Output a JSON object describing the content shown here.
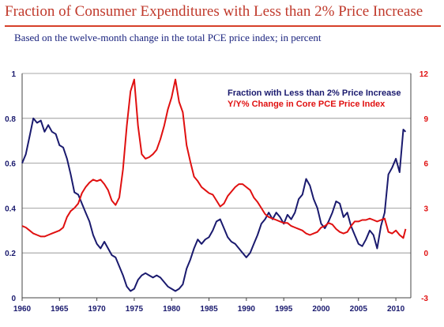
{
  "title": "Fraction of Consumer Expenditures with Less than 2% Price Increase",
  "subtitle": "Based on the twelve-month change in the total PCE price index; in percent",
  "chart_data": {
    "type": "line",
    "title": "Fraction of Consumer Expenditures with Less than 2% Price Increase",
    "subtitle": "Based on the twelve-month change in the total PCE price index; in percent",
    "xlim": [
      1960,
      2012
    ],
    "x_ticks": [
      "1960",
      "1965",
      "1970",
      "1975",
      "1980",
      "1985",
      "1990",
      "1995",
      "2000",
      "2005",
      "2010"
    ],
    "y_left": {
      "lim": [
        0,
        1
      ],
      "ticks": [
        "0",
        "0.2",
        "0.4",
        "0.6",
        "0.8",
        "1"
      ],
      "color": "#1a1a6e"
    },
    "y_right": {
      "lim": [
        -3,
        12
      ],
      "ticks": [
        "-3",
        "0",
        "3",
        "6",
        "9",
        "12"
      ],
      "color": "#e01010"
    },
    "grid": "horizontal",
    "legend_position": "top-right",
    "series": [
      {
        "name": "Fraction with Less than 2% Price Increase",
        "axis": "left",
        "color": "#1a1a6e",
        "points": [
          [
            1960.0,
            0.6
          ],
          [
            1960.5,
            0.64
          ],
          [
            1961.0,
            0.72
          ],
          [
            1961.5,
            0.8
          ],
          [
            1962.0,
            0.78
          ],
          [
            1962.5,
            0.79
          ],
          [
            1963.0,
            0.74
          ],
          [
            1963.5,
            0.77
          ],
          [
            1964.0,
            0.74
          ],
          [
            1964.5,
            0.73
          ],
          [
            1965.0,
            0.68
          ],
          [
            1965.5,
            0.67
          ],
          [
            1966.0,
            0.62
          ],
          [
            1966.5,
            0.55
          ],
          [
            1967.0,
            0.47
          ],
          [
            1967.5,
            0.46
          ],
          [
            1968.0,
            0.42
          ],
          [
            1968.5,
            0.38
          ],
          [
            1969.0,
            0.34
          ],
          [
            1969.5,
            0.28
          ],
          [
            1970.0,
            0.24
          ],
          [
            1970.5,
            0.22
          ],
          [
            1971.0,
            0.25
          ],
          [
            1971.5,
            0.22
          ],
          [
            1972.0,
            0.19
          ],
          [
            1972.5,
            0.18
          ],
          [
            1973.0,
            0.14
          ],
          [
            1973.5,
            0.1
          ],
          [
            1974.0,
            0.05
          ],
          [
            1974.5,
            0.03
          ],
          [
            1975.0,
            0.04
          ],
          [
            1975.5,
            0.08
          ],
          [
            1976.0,
            0.1
          ],
          [
            1976.5,
            0.11
          ],
          [
            1977.0,
            0.1
          ],
          [
            1977.5,
            0.09
          ],
          [
            1978.0,
            0.1
          ],
          [
            1978.5,
            0.09
          ],
          [
            1979.0,
            0.07
          ],
          [
            1979.5,
            0.05
          ],
          [
            1980.0,
            0.04
          ],
          [
            1980.5,
            0.03
          ],
          [
            1981.0,
            0.04
          ],
          [
            1981.5,
            0.06
          ],
          [
            1982.0,
            0.13
          ],
          [
            1982.5,
            0.17
          ],
          [
            1983.0,
            0.22
          ],
          [
            1983.5,
            0.26
          ],
          [
            1984.0,
            0.24
          ],
          [
            1984.5,
            0.26
          ],
          [
            1985.0,
            0.27
          ],
          [
            1985.5,
            0.3
          ],
          [
            1986.0,
            0.34
          ],
          [
            1986.5,
            0.35
          ],
          [
            1987.0,
            0.31
          ],
          [
            1987.5,
            0.27
          ],
          [
            1988.0,
            0.25
          ],
          [
            1988.5,
            0.24
          ],
          [
            1989.0,
            0.22
          ],
          [
            1989.5,
            0.2
          ],
          [
            1990.0,
            0.18
          ],
          [
            1990.5,
            0.2
          ],
          [
            1991.0,
            0.24
          ],
          [
            1991.5,
            0.28
          ],
          [
            1992.0,
            0.33
          ],
          [
            1992.5,
            0.35
          ],
          [
            1993.0,
            0.38
          ],
          [
            1993.5,
            0.35
          ],
          [
            1994.0,
            0.38
          ],
          [
            1994.5,
            0.36
          ],
          [
            1995.0,
            0.33
          ],
          [
            1995.5,
            0.37
          ],
          [
            1996.0,
            0.35
          ],
          [
            1996.5,
            0.38
          ],
          [
            1997.0,
            0.44
          ],
          [
            1997.5,
            0.46
          ],
          [
            1998.0,
            0.53
          ],
          [
            1998.5,
            0.5
          ],
          [
            1999.0,
            0.44
          ],
          [
            1999.5,
            0.4
          ],
          [
            2000.0,
            0.33
          ],
          [
            2000.5,
            0.31
          ],
          [
            2001.0,
            0.34
          ],
          [
            2001.5,
            0.38
          ],
          [
            2002.0,
            0.43
          ],
          [
            2002.5,
            0.42
          ],
          [
            2003.0,
            0.36
          ],
          [
            2003.5,
            0.38
          ],
          [
            2004.0,
            0.32
          ],
          [
            2004.5,
            0.28
          ],
          [
            2005.0,
            0.24
          ],
          [
            2005.5,
            0.23
          ],
          [
            2006.0,
            0.26
          ],
          [
            2006.5,
            0.3
          ],
          [
            2007.0,
            0.28
          ],
          [
            2007.5,
            0.22
          ],
          [
            2008.0,
            0.32
          ],
          [
            2008.5,
            0.38
          ],
          [
            2009.0,
            0.55
          ],
          [
            2009.5,
            0.58
          ],
          [
            2010.0,
            0.62
          ],
          [
            2010.5,
            0.56
          ],
          [
            2011.0,
            0.75
          ],
          [
            2011.3,
            0.74
          ]
        ]
      },
      {
        "name": "Y/Y% Change in Core PCE Price Index",
        "axis": "right",
        "color": "#e01010",
        "points": [
          [
            1960.0,
            1.8
          ],
          [
            1960.5,
            1.7
          ],
          [
            1961.0,
            1.5
          ],
          [
            1961.5,
            1.3
          ],
          [
            1962.0,
            1.2
          ],
          [
            1962.5,
            1.1
          ],
          [
            1963.0,
            1.1
          ],
          [
            1963.5,
            1.2
          ],
          [
            1964.0,
            1.3
          ],
          [
            1964.5,
            1.4
          ],
          [
            1965.0,
            1.5
          ],
          [
            1965.5,
            1.7
          ],
          [
            1966.0,
            2.4
          ],
          [
            1966.5,
            2.8
          ],
          [
            1967.0,
            3.0
          ],
          [
            1967.5,
            3.3
          ],
          [
            1968.0,
            4.0
          ],
          [
            1968.5,
            4.4
          ],
          [
            1969.0,
            4.7
          ],
          [
            1969.5,
            4.9
          ],
          [
            1970.0,
            4.8
          ],
          [
            1970.5,
            4.9
          ],
          [
            1971.0,
            4.6
          ],
          [
            1971.5,
            4.2
          ],
          [
            1972.0,
            3.5
          ],
          [
            1972.5,
            3.2
          ],
          [
            1973.0,
            3.7
          ],
          [
            1973.5,
            5.6
          ],
          [
            1974.0,
            8.5
          ],
          [
            1974.5,
            10.8
          ],
          [
            1975.0,
            11.6
          ],
          [
            1975.5,
            8.5
          ],
          [
            1976.0,
            6.6
          ],
          [
            1976.5,
            6.3
          ],
          [
            1977.0,
            6.4
          ],
          [
            1977.5,
            6.6
          ],
          [
            1978.0,
            6.9
          ],
          [
            1978.5,
            7.6
          ],
          [
            1979.0,
            8.5
          ],
          [
            1979.5,
            9.6
          ],
          [
            1980.0,
            10.4
          ],
          [
            1980.5,
            11.6
          ],
          [
            1981.0,
            10.1
          ],
          [
            1981.5,
            9.4
          ],
          [
            1982.0,
            7.2
          ],
          [
            1982.5,
            6.1
          ],
          [
            1983.0,
            5.1
          ],
          [
            1983.5,
            4.8
          ],
          [
            1984.0,
            4.4
          ],
          [
            1984.5,
            4.2
          ],
          [
            1985.0,
            4.0
          ],
          [
            1985.5,
            3.9
          ],
          [
            1986.0,
            3.5
          ],
          [
            1986.5,
            3.1
          ],
          [
            1987.0,
            3.3
          ],
          [
            1987.5,
            3.8
          ],
          [
            1988.0,
            4.1
          ],
          [
            1988.5,
            4.4
          ],
          [
            1989.0,
            4.6
          ],
          [
            1989.5,
            4.6
          ],
          [
            1990.0,
            4.4
          ],
          [
            1990.5,
            4.2
          ],
          [
            1991.0,
            3.7
          ],
          [
            1991.5,
            3.4
          ],
          [
            1992.0,
            3.0
          ],
          [
            1992.5,
            2.6
          ],
          [
            1993.0,
            2.4
          ],
          [
            1993.5,
            2.3
          ],
          [
            1994.0,
            2.2
          ],
          [
            1994.5,
            2.1
          ],
          [
            1995.0,
            2.0
          ],
          [
            1995.5,
            2.0
          ],
          [
            1996.0,
            1.8
          ],
          [
            1996.5,
            1.7
          ],
          [
            1997.0,
            1.6
          ],
          [
            1997.5,
            1.5
          ],
          [
            1998.0,
            1.3
          ],
          [
            1998.5,
            1.2
          ],
          [
            1999.0,
            1.3
          ],
          [
            1999.5,
            1.4
          ],
          [
            2000.0,
            1.7
          ],
          [
            2000.5,
            1.8
          ],
          [
            2001.0,
            2.0
          ],
          [
            2001.5,
            1.9
          ],
          [
            2002.0,
            1.6
          ],
          [
            2002.5,
            1.4
          ],
          [
            2003.0,
            1.3
          ],
          [
            2003.5,
            1.4
          ],
          [
            2004.0,
            1.8
          ],
          [
            2004.5,
            2.1
          ],
          [
            2005.0,
            2.1
          ],
          [
            2005.5,
            2.2
          ],
          [
            2006.0,
            2.2
          ],
          [
            2006.5,
            2.3
          ],
          [
            2007.0,
            2.2
          ],
          [
            2007.5,
            2.1
          ],
          [
            2008.0,
            2.2
          ],
          [
            2008.5,
            2.3
          ],
          [
            2009.0,
            1.4
          ],
          [
            2009.5,
            1.3
          ],
          [
            2010.0,
            1.5
          ],
          [
            2010.5,
            1.2
          ],
          [
            2011.0,
            1.0
          ],
          [
            2011.3,
            1.6
          ]
        ]
      }
    ]
  }
}
